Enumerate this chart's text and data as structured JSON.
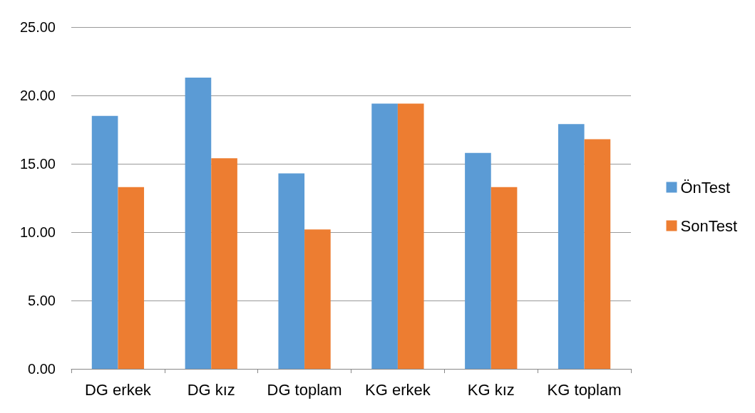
{
  "chart_data": {
    "type": "bar",
    "categories": [
      "DG erkek",
      "DG kız",
      "DG toplam",
      "KG erkek",
      "KG kız",
      "KG toplam"
    ],
    "series": [
      {
        "name": "ÖnTest",
        "color": "#5b9bd5",
        "values": [
          18.5,
          21.3,
          14.3,
          19.4,
          15.8,
          17.9
        ]
      },
      {
        "name": "SonTest",
        "color": "#ed7d31",
        "values": [
          13.3,
          15.4,
          10.2,
          19.4,
          13.3,
          16.8
        ]
      }
    ],
    "ylim": [
      0,
      25
    ],
    "yticks": [
      {
        "value": 0,
        "label": "0.00"
      },
      {
        "value": 5,
        "label": "5.00"
      },
      {
        "value": 10,
        "label": "10.00"
      },
      {
        "value": 15,
        "label": "15.00"
      },
      {
        "value": 20,
        "label": "20.00"
      },
      {
        "value": 25,
        "label": "25.00"
      }
    ],
    "grid": "y",
    "legend": "right"
  }
}
